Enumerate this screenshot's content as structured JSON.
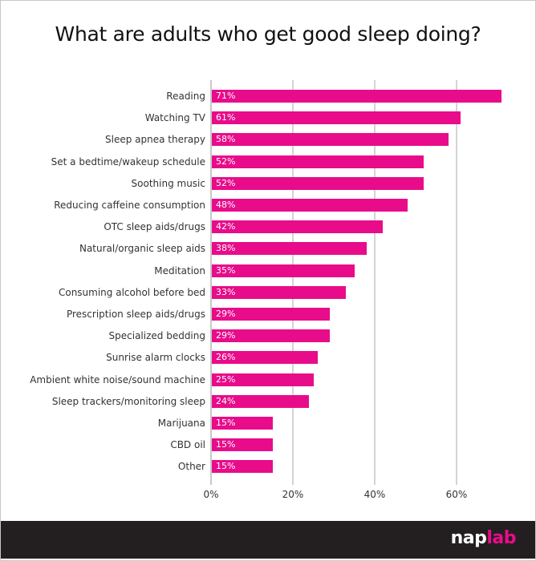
{
  "title": "What are adults who get good sleep doing?",
  "colors": {
    "bar": "#e80c8a",
    "footer": "#231f20",
    "logo_accent": "#e80c8a"
  },
  "footer": {
    "logo_part1": "nap",
    "logo_part2": "lab"
  },
  "axis": {
    "ticks": [
      "0%",
      "20%",
      "40%",
      "60%"
    ]
  },
  "chart_data": {
    "type": "bar",
    "orientation": "horizontal",
    "title": "What are adults who get good sleep doing?",
    "xlabel": "",
    "ylabel": "",
    "xlim": [
      0,
      72
    ],
    "x_ticks": [
      "0%",
      "20%",
      "40%",
      "60%"
    ],
    "grid": true,
    "legend": null,
    "categories": [
      "Reading",
      "Watching TV",
      "Sleep apnea therapy",
      "Set a bedtime/wakeup schedule",
      "Soothing music",
      "Reducing caffeine consumption",
      "OTC sleep aids/drugs",
      "Natural/organic sleep aids",
      "Meditation",
      "Consuming alcohol before bed",
      "Prescription sleep aids/drugs",
      "Specialized bedding",
      "Sunrise alarm clocks",
      "Ambient white noise/sound machine",
      "Sleep trackers/monitoring sleep",
      "Marijuana",
      "CBD oil",
      "Other"
    ],
    "values": [
      71,
      61,
      58,
      52,
      52,
      48,
      42,
      38,
      35,
      33,
      29,
      29,
      26,
      25,
      24,
      15,
      15,
      15
    ],
    "labels": [
      "71%",
      "61%",
      "58%",
      "52%",
      "52%",
      "48%",
      "42%",
      "38%",
      "35%",
      "33%",
      "29%",
      "29%",
      "26%",
      "25%",
      "24%",
      "15%",
      "15%",
      "15%"
    ]
  }
}
